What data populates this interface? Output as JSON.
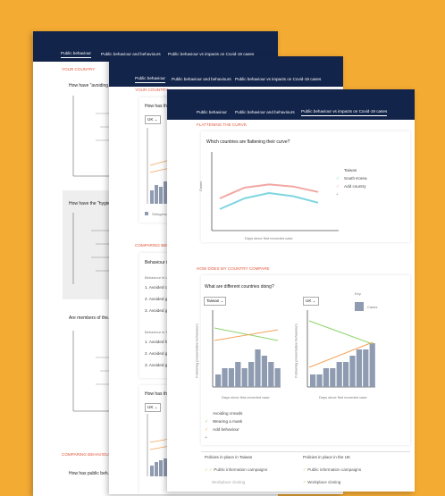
{
  "nav_tabs": [
    "Public behaviour",
    "Public behaviour and behaviours",
    "Public behaviour vs impacts on Covid-19 cases"
  ],
  "back": {
    "section_your_country": "YOUR COUNTRY",
    "q1": "How have \"avoiding...",
    "q2": "How have the \"hygie...",
    "q3": "Are members of the...",
    "section_comparing": "COMPARING BEHAVIOURS",
    "q4": "How has public beh..."
  },
  "mid": {
    "section_your_country": "YOUR COUNTRY",
    "q1": "How has the...",
    "select": "UK",
    "legend_stringency": "Stringency",
    "section_comparing": "COMPARING BEHAVIOURS",
    "q2": "Behaviour in...",
    "group1": "Behaviour in UK",
    "group2": "Behaviour in Taiwan",
    "items": [
      "1. Avoided c...",
      "2. Avoided g...",
      "3. Avoided g..."
    ],
    "items2": [
      "1. Avoided h...",
      "2. Avoided g...",
      "3. Avoided g..."
    ],
    "q3": "How has the...",
    "select2": "UK"
  },
  "front": {
    "section_flatten": "FLATTENING THE CURVE",
    "q_flatten": "Which countries are flattening their curve?",
    "y_label": "Cases",
    "x_label": "Days since first recorded case",
    "legend": [
      {
        "label": "Taiwan",
        "color": "#7ed6e0"
      },
      {
        "label": "South Korea",
        "color": "#f2a7a3"
      },
      {
        "label": "Add country",
        "color": "#aaaaaa"
      }
    ],
    "section_compare": "HOW DOES MY COUNTRY COMPARE",
    "q_compare": "What are different countries doing?",
    "key_label": "Key",
    "key_cases": "Cases",
    "left_select": "Taiwan",
    "right_select": "UK",
    "y_label2": "Following preventative behaviours",
    "x_label2": "Days since first recorded case",
    "behaviours": [
      {
        "label": "Avoiding crowds",
        "color": "#8dd46a",
        "mark": "✓"
      },
      {
        "label": "Wearing a mask",
        "color": "#f4a35a",
        "mark": "✓"
      },
      {
        "label": "Add behaviour",
        "color": "#999999",
        "mark": "+"
      }
    ],
    "policies_taiwan": "Policies in place in Taiwan",
    "policies_uk": "Policies in place in the UK",
    "policy_items": [
      "Public information campaigns",
      "Workplace closing"
    ]
  },
  "chart_data": [
    {
      "type": "line",
      "title": "Which countries are flattening their curve?",
      "xlabel": "Days since first recorded case",
      "ylabel": "Cases",
      "series": [
        {
          "name": "Taiwan",
          "values": [
            2,
            3,
            3.5,
            3.2,
            2.6
          ]
        },
        {
          "name": "South Korea",
          "values": [
            3,
            4,
            4.3,
            4.1,
            3.6
          ]
        }
      ]
    },
    {
      "type": "bar",
      "categories": [
        "1",
        "2",
        "3",
        "4",
        "5",
        "6",
        "7",
        "8",
        "9",
        "10"
      ],
      "values": [
        2,
        3,
        3,
        4,
        3,
        4,
        6,
        5,
        4,
        3
      ],
      "ylabel": "Following preventative behaviours",
      "xlabel": "Days since first recorded case"
    },
    {
      "type": "bar",
      "categories": [
        "1",
        "2",
        "3",
        "4",
        "5",
        "6",
        "7",
        "8",
        "9",
        "10"
      ],
      "values": [
        2,
        2,
        3,
        3,
        4,
        4,
        5,
        6,
        6,
        7
      ],
      "ylabel": "Following preventative behaviours",
      "xlabel": "Days since first recorded case"
    }
  ]
}
